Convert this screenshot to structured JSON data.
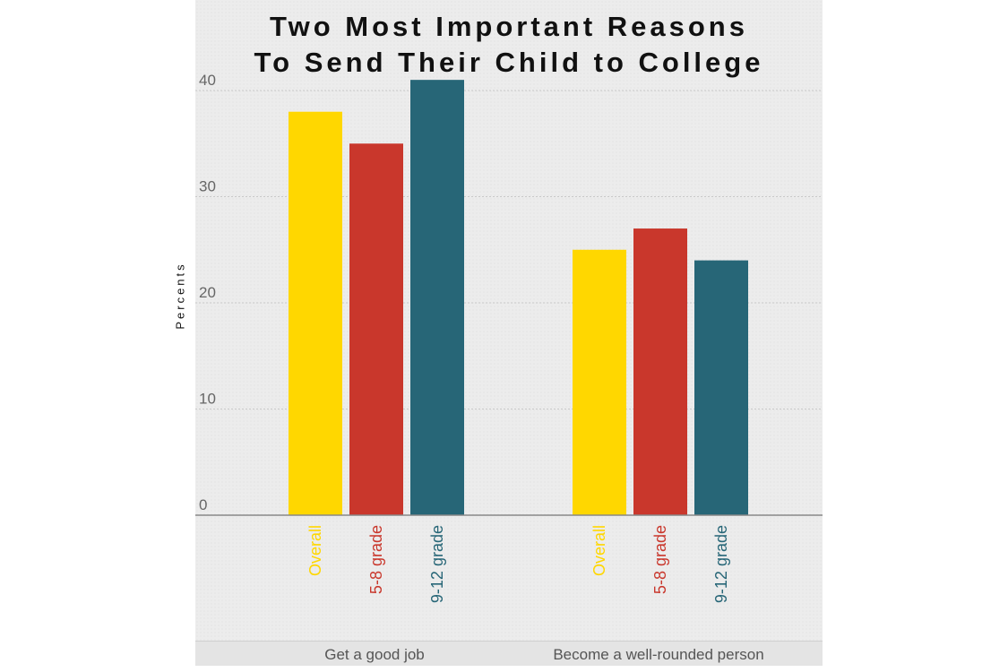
{
  "chart_data": {
    "type": "bar",
    "title_lines": [
      "Two Most Important Reasons",
      "To Send Their Child to College"
    ],
    "ylabel": "Percents",
    "ylim": [
      0,
      40
    ],
    "yticks": [
      0,
      10,
      20,
      30,
      40
    ],
    "grid": true,
    "groups": [
      {
        "label": "Get a good job",
        "bars": [
          {
            "label": "Overall",
            "value": 38,
            "color": "#FFD700"
          },
          {
            "label": "5-8 grade",
            "value": 35,
            "color": "#C9372C"
          },
          {
            "label": "9-12 grade",
            "value": 41,
            "color": "#276677"
          }
        ]
      },
      {
        "label": "Become  a well-rounded person",
        "bars": [
          {
            "label": "Overall",
            "value": 25,
            "color": "#FFD700"
          },
          {
            "label": "5-8 grade",
            "value": 27,
            "color": "#C9372C"
          },
          {
            "label": "9-12 grade",
            "value": 24,
            "color": "#276677"
          }
        ]
      }
    ]
  }
}
